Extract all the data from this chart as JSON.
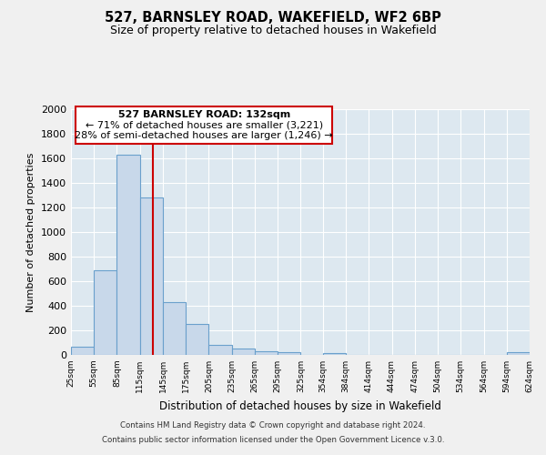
{
  "title": "527, BARNSLEY ROAD, WAKEFIELD, WF2 6BP",
  "subtitle": "Size of property relative to detached houses in Wakefield",
  "xlabel": "Distribution of detached houses by size in Wakefield",
  "ylabel": "Number of detached properties",
  "bar_color": "#c8d8ea",
  "bar_edge_color": "#6aa0cc",
  "background_color": "#dde8f0",
  "grid_color": "#ffffff",
  "annotation_box_color": "#cc0000",
  "property_line_color": "#cc0000",
  "property_sqm": 132,
  "annotation_title": "527 BARNSLEY ROAD: 132sqm",
  "annotation_line1": "← 71% of detached houses are smaller (3,221)",
  "annotation_line2": "28% of semi-detached houses are larger (1,246) →",
  "footer_line1": "Contains HM Land Registry data © Crown copyright and database right 2024.",
  "footer_line2": "Contains public sector information licensed under the Open Government Licence v.3.0.",
  "bins": [
    25,
    55,
    85,
    115,
    145,
    175,
    205,
    235,
    265,
    295,
    325,
    354,
    384,
    414,
    444,
    474,
    504,
    534,
    564,
    594,
    624
  ],
  "counts": [
    65,
    690,
    1630,
    1280,
    430,
    250,
    85,
    50,
    30,
    20,
    0,
    15,
    0,
    0,
    0,
    0,
    0,
    0,
    0,
    20
  ],
  "ylim": [
    0,
    2000
  ],
  "yticks": [
    0,
    200,
    400,
    600,
    800,
    1000,
    1200,
    1400,
    1600,
    1800,
    2000
  ],
  "fig_width": 6.0,
  "fig_height": 5.0,
  "fig_dpi": 100
}
